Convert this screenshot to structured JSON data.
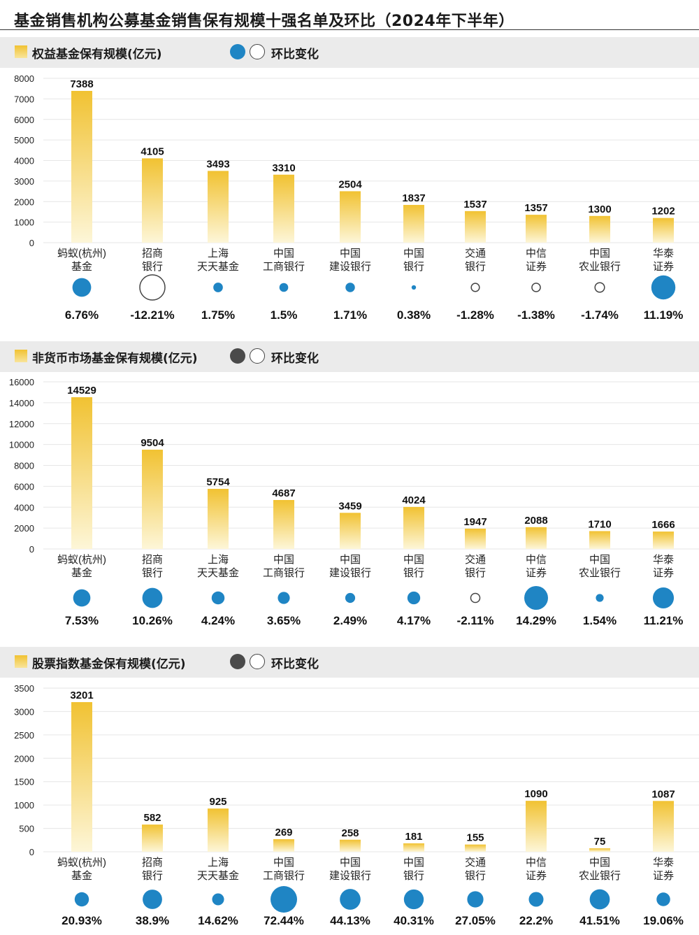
{
  "title": "基金销售机构公募基金销售保有规模十强名单及环比（2024年下半年）",
  "legend": {
    "change_label": "环比变化"
  },
  "colors": {
    "bar_top": "#f1c232",
    "bar_bottom": "#fdf6d8",
    "up": "#1f85c4",
    "legend_dark_2": "#4a4a4a",
    "grid": "#e6e6e6"
  },
  "chart_data": [
    {
      "type": "bar",
      "title": "权益基金保有规模(亿元)",
      "categories": [
        [
          "蚂蚁(杭州)",
          "基金"
        ],
        [
          "招商",
          "银行"
        ],
        [
          "上海",
          "天天基金"
        ],
        [
          "中国",
          "工商银行"
        ],
        [
          "中国",
          "建设银行"
        ],
        [
          "中国",
          "银行"
        ],
        [
          "交通",
          "银行"
        ],
        [
          "中信",
          "证券"
        ],
        [
          "中国",
          "农业银行"
        ],
        [
          "华泰",
          "证券"
        ]
      ],
      "values": [
        7388,
        4105,
        3493,
        3310,
        2504,
        1837,
        1537,
        1357,
        1300,
        1202
      ],
      "changes": [
        6.76,
        -12.21,
        1.75,
        1.5,
        1.71,
        0.38,
        -1.28,
        -1.38,
        -1.74,
        11.19
      ],
      "change_labels": [
        "6.76%",
        "-12.21%",
        "1.75%",
        "1.5%",
        "1.71%",
        "0.38%",
        "-1.28%",
        "-1.38%",
        "-1.74%",
        "11.19%"
      ],
      "yticks": [
        0,
        1000,
        2000,
        3000,
        4000,
        5000,
        6000,
        7000,
        8000
      ],
      "ylim": [
        0,
        8000
      ],
      "legend_dot_color": "#1f85c4",
      "grid": true
    },
    {
      "type": "bar",
      "title": "非货币市场基金保有规模(亿元)",
      "categories": [
        [
          "蚂蚁(杭州)",
          "基金"
        ],
        [
          "招商",
          "银行"
        ],
        [
          "上海",
          "天天基金"
        ],
        [
          "中国",
          "工商银行"
        ],
        [
          "中国",
          "建设银行"
        ],
        [
          "中国",
          "银行"
        ],
        [
          "交通",
          "银行"
        ],
        [
          "中信",
          "证券"
        ],
        [
          "中国",
          "农业银行"
        ],
        [
          "华泰",
          "证券"
        ]
      ],
      "values": [
        14529,
        9504,
        5754,
        4687,
        3459,
        4024,
        1947,
        2088,
        1710,
        1666
      ],
      "changes": [
        7.53,
        10.26,
        4.24,
        3.65,
        2.49,
        4.17,
        -2.11,
        14.29,
        1.54,
        11.21
      ],
      "change_labels": [
        "7.53%",
        "10.26%",
        "4.24%",
        "3.65%",
        "2.49%",
        "4.17%",
        "-2.11%",
        "14.29%",
        "1.54%",
        "11.21%"
      ],
      "yticks": [
        0,
        2000,
        4000,
        6000,
        8000,
        10000,
        12000,
        14000,
        16000
      ],
      "ylim": [
        0,
        16000
      ],
      "legend_dot_color": "#4a4a4a",
      "grid": true
    },
    {
      "type": "bar",
      "title": "股票指数基金保有规模(亿元)",
      "categories": [
        [
          "蚂蚁(杭州)",
          "基金"
        ],
        [
          "招商",
          "银行"
        ],
        [
          "上海",
          "天天基金"
        ],
        [
          "中国",
          "工商银行"
        ],
        [
          "中国",
          "建设银行"
        ],
        [
          "中国",
          "银行"
        ],
        [
          "交通",
          "银行"
        ],
        [
          "中信",
          "证券"
        ],
        [
          "中国",
          "农业银行"
        ],
        [
          "华泰",
          "证券"
        ]
      ],
      "values": [
        3201,
        582,
        925,
        269,
        258,
        181,
        155,
        1090,
        75,
        1087
      ],
      "changes": [
        20.93,
        38.9,
        14.62,
        72.44,
        44.13,
        40.31,
        27.05,
        22.2,
        41.51,
        19.06
      ],
      "change_labels": [
        "20.93%",
        "38.9%",
        "14.62%",
        "72.44%",
        "44.13%",
        "40.31%",
        "27.05%",
        "22.2%",
        "41.51%",
        "19.06%"
      ],
      "yticks": [
        0,
        500,
        1000,
        1500,
        2000,
        2500,
        3000,
        3500
      ],
      "ylim": [
        0,
        3500
      ],
      "legend_dot_color": "#4a4a4a",
      "grid": true
    }
  ]
}
